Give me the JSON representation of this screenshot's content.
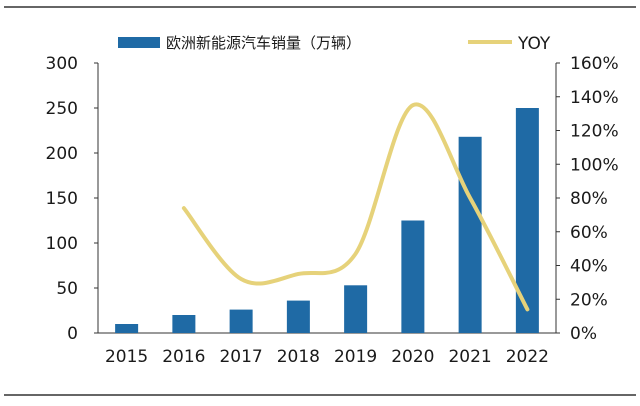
{
  "chart_data": {
    "type": "bar+line",
    "title": "",
    "categories": [
      "2015",
      "2016",
      "2017",
      "2018",
      "2019",
      "2020",
      "2021",
      "2022"
    ],
    "series": [
      {
        "name": "欧洲新能源汽车销量（万辆）",
        "type": "bar",
        "axis": "left",
        "color": "#1f6aa5",
        "values": [
          10,
          20,
          26,
          36,
          53,
          125,
          218,
          250
        ]
      },
      {
        "name": "YOY",
        "type": "line",
        "axis": "right",
        "color": "#e6d27a",
        "values": [
          null,
          74,
          32,
          35,
          47,
          135,
          80,
          14
        ]
      }
    ],
    "y_left": {
      "min": 0,
      "max": 300,
      "ticks": [
        "0",
        "50",
        "100",
        "150",
        "200",
        "250",
        "300"
      ]
    },
    "y_right": {
      "min": 0,
      "max": 160,
      "ticks": [
        "0%",
        "20%",
        "40%",
        "60%",
        "80%",
        "100%",
        "120%",
        "140%",
        "160%"
      ]
    },
    "legend": "top",
    "grid": false
  }
}
